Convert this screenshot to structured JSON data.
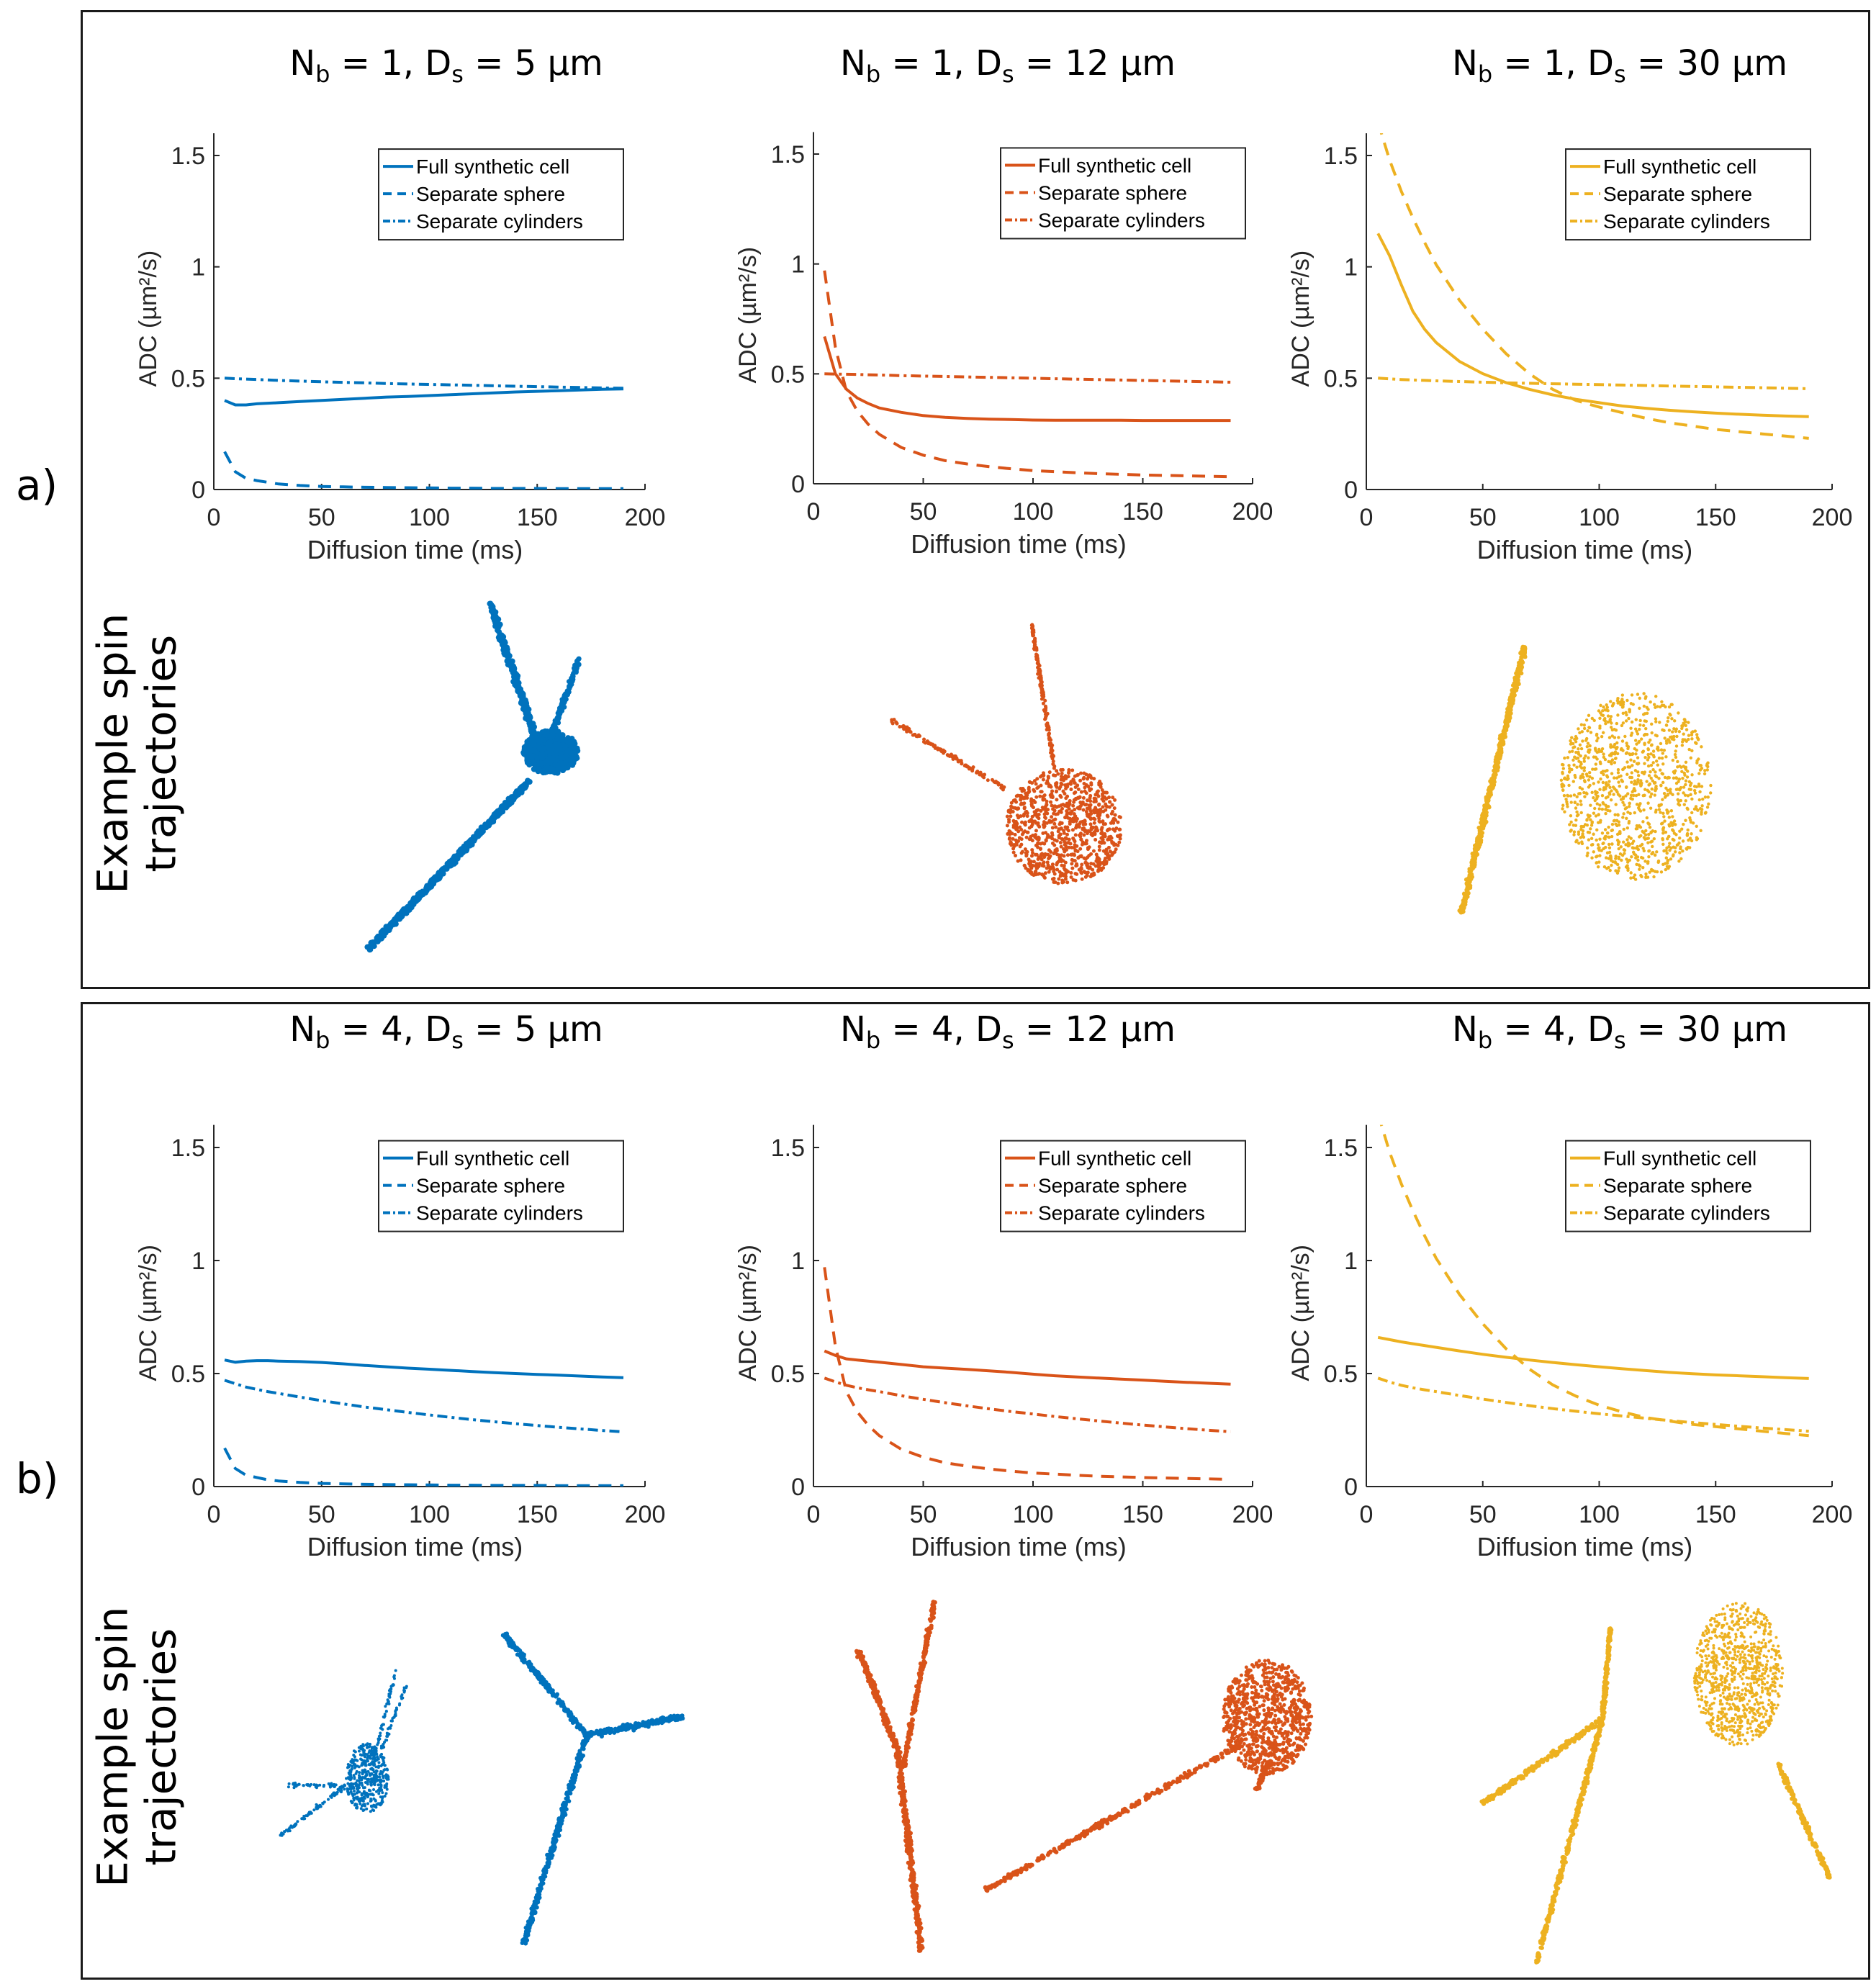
{
  "figure": {
    "panels": [
      {
        "label": "a)",
        "side_label_line1": "Example spin",
        "side_label_line2": "trajectories"
      },
      {
        "label": "b)",
        "side_label_line1": "Example spin",
        "side_label_line2": "trajectories"
      }
    ],
    "colors": {
      "blue": "#0072BD",
      "orange": "#D95319",
      "yellow": "#EDB120",
      "axis": "#262626"
    }
  },
  "chart_data": [
    {
      "type": "line",
      "panel": "a",
      "title": {
        "n_b": "1",
        "d_s": "5"
      },
      "title_text": "N_b = 1, D_s = 5 µm",
      "xlabel": "Diffusion time (ms)",
      "ylabel": "ADC (µm²/s)",
      "xlim": [
        0,
        200
      ],
      "ylim": [
        0,
        1.6
      ],
      "xticks": [
        0,
        50,
        100,
        150,
        200
      ],
      "yticks": [
        0,
        0.5,
        1,
        1.5
      ],
      "color": "#0072BD",
      "legend": "top-right",
      "x": [
        5,
        10,
        15,
        20,
        30,
        40,
        50,
        60,
        70,
        80,
        90,
        100,
        110,
        120,
        130,
        140,
        150,
        160,
        170,
        180,
        190
      ],
      "series": [
        {
          "name": "Full synthetic cell",
          "style": "solid",
          "values": [
            0.4,
            0.38,
            0.38,
            0.385,
            0.39,
            0.395,
            0.4,
            0.405,
            0.41,
            0.415,
            0.418,
            0.422,
            0.426,
            0.43,
            0.434,
            0.438,
            0.441,
            0.444,
            0.447,
            0.45,
            0.452
          ]
        },
        {
          "name": "Separate sphere",
          "style": "dashed",
          "values": [
            0.17,
            0.08,
            0.05,
            0.04,
            0.025,
            0.018,
            0.014,
            0.012,
            0.01,
            0.009,
            0.008,
            0.007,
            0.006,
            0.006,
            0.005,
            0.005,
            0.005,
            0.004,
            0.004,
            0.004,
            0.004
          ]
        },
        {
          "name": "Separate cylinders",
          "style": "dashdot",
          "values": [
            0.5,
            0.498,
            0.496,
            0.494,
            0.49,
            0.487,
            0.484,
            0.481,
            0.479,
            0.476,
            0.474,
            0.472,
            0.47,
            0.468,
            0.466,
            0.464,
            0.462,
            0.46,
            0.458,
            0.456,
            0.455
          ]
        }
      ]
    },
    {
      "type": "line",
      "panel": "a",
      "title": {
        "n_b": "1",
        "d_s": "12"
      },
      "title_text": "N_b = 1, D_s = 12 µm",
      "xlabel": "Diffusion time (ms)",
      "ylabel": "ADC (µm²/s)",
      "xlim": [
        0,
        200
      ],
      "ylim": [
        0,
        1.6
      ],
      "xticks": [
        0,
        50,
        100,
        150,
        200
      ],
      "yticks": [
        0,
        0.5,
        1,
        1.5
      ],
      "color": "#D95319",
      "legend": "top-right",
      "x": [
        5,
        10,
        15,
        20,
        25,
        30,
        40,
        50,
        60,
        70,
        80,
        90,
        100,
        110,
        120,
        130,
        140,
        150,
        160,
        170,
        180,
        190
      ],
      "series": [
        {
          "name": "Full synthetic cell",
          "style": "solid",
          "values": [
            0.67,
            0.5,
            0.43,
            0.39,
            0.365,
            0.345,
            0.325,
            0.31,
            0.302,
            0.297,
            0.294,
            0.292,
            0.29,
            0.289,
            0.289,
            0.289,
            0.289,
            0.288,
            0.288,
            0.288,
            0.288,
            0.288
          ]
        },
        {
          "name": "Separate sphere",
          "style": "dashed",
          "values": [
            0.97,
            0.62,
            0.42,
            0.33,
            0.27,
            0.225,
            0.165,
            0.13,
            0.105,
            0.09,
            0.078,
            0.068,
            0.06,
            0.055,
            0.05,
            0.046,
            0.043,
            0.04,
            0.038,
            0.036,
            0.034,
            0.032
          ]
        },
        {
          "name": "Separate cylinders",
          "style": "dashdot",
          "values": [
            0.5,
            0.499,
            0.498,
            0.497,
            0.496,
            0.495,
            0.492,
            0.49,
            0.488,
            0.486,
            0.484,
            0.482,
            0.48,
            0.478,
            0.476,
            0.474,
            0.472,
            0.47,
            0.468,
            0.466,
            0.464,
            0.462
          ]
        }
      ]
    },
    {
      "type": "line",
      "panel": "a",
      "title": {
        "n_b": "1",
        "d_s": "30"
      },
      "title_text": "N_b = 1, D_s = 30 µm",
      "xlabel": "Diffusion time (ms)",
      "ylabel": "ADC (µm²/s)",
      "xlim": [
        0,
        200
      ],
      "ylim": [
        0,
        1.6
      ],
      "xticks": [
        0,
        50,
        100,
        150,
        200
      ],
      "yticks": [
        0,
        0.5,
        1,
        1.5
      ],
      "color": "#EDB120",
      "legend": "top-right",
      "x": [
        5,
        10,
        15,
        20,
        25,
        30,
        40,
        50,
        60,
        70,
        80,
        90,
        100,
        110,
        120,
        130,
        140,
        150,
        160,
        170,
        180,
        190
      ],
      "series": [
        {
          "name": "Full synthetic cell",
          "style": "solid",
          "values": [
            1.15,
            1.05,
            0.92,
            0.8,
            0.72,
            0.66,
            0.575,
            0.52,
            0.48,
            0.45,
            0.425,
            0.405,
            0.39,
            0.375,
            0.365,
            0.356,
            0.349,
            0.343,
            0.338,
            0.334,
            0.33,
            0.327
          ]
        },
        {
          "name": "Separate sphere",
          "style": "dashed",
          "values": [
            1.65,
            1.48,
            1.34,
            1.22,
            1.11,
            1.01,
            0.85,
            0.72,
            0.61,
            0.52,
            0.45,
            0.4,
            0.37,
            0.345,
            0.32,
            0.3,
            0.285,
            0.27,
            0.26,
            0.25,
            0.24,
            0.23
          ]
        },
        {
          "name": "Separate cylinders",
          "style": "dashdot",
          "values": [
            0.5,
            0.497,
            0.494,
            0.492,
            0.49,
            0.488,
            0.485,
            0.482,
            0.479,
            0.477,
            0.475,
            0.473,
            0.471,
            0.469,
            0.467,
            0.465,
            0.463,
            0.461,
            0.459,
            0.457,
            0.455,
            0.453
          ]
        }
      ]
    },
    {
      "type": "line",
      "panel": "b",
      "title": {
        "n_b": "4",
        "d_s": "5"
      },
      "title_text": "N_b = 4, D_s = 5 µm",
      "xlabel": "Diffusion time (ms)",
      "ylabel": "ADC (µm²/s)",
      "xlim": [
        0,
        200
      ],
      "ylim": [
        0,
        1.6
      ],
      "xticks": [
        0,
        50,
        100,
        150,
        200
      ],
      "yticks": [
        0,
        0.5,
        1,
        1.5
      ],
      "color": "#0072BD",
      "legend": "top-right",
      "x": [
        5,
        10,
        15,
        20,
        25,
        30,
        40,
        50,
        60,
        70,
        80,
        90,
        100,
        110,
        120,
        130,
        140,
        150,
        160,
        170,
        180,
        190
      ],
      "series": [
        {
          "name": "Full synthetic cell",
          "style": "solid",
          "values": [
            0.56,
            0.55,
            0.555,
            0.557,
            0.557,
            0.555,
            0.553,
            0.549,
            0.543,
            0.536,
            0.53,
            0.524,
            0.519,
            0.514,
            0.509,
            0.504,
            0.5,
            0.496,
            0.493,
            0.489,
            0.485,
            0.482
          ]
        },
        {
          "name": "Separate sphere",
          "style": "dashed",
          "values": [
            0.17,
            0.08,
            0.05,
            0.04,
            0.03,
            0.025,
            0.018,
            0.014,
            0.012,
            0.01,
            0.009,
            0.008,
            0.007,
            0.006,
            0.006,
            0.005,
            0.005,
            0.005,
            0.004,
            0.004,
            0.004,
            0.004
          ]
        },
        {
          "name": "Separate cylinders",
          "style": "dashdot",
          "values": [
            0.47,
            0.455,
            0.44,
            0.43,
            0.42,
            0.412,
            0.396,
            0.38,
            0.366,
            0.352,
            0.34,
            0.328,
            0.317,
            0.306,
            0.296,
            0.287,
            0.278,
            0.27,
            0.262,
            0.255,
            0.248,
            0.242
          ]
        }
      ]
    },
    {
      "type": "line",
      "panel": "b",
      "title": {
        "n_b": "4",
        "d_s": "12"
      },
      "title_text": "N_b = 4, D_s = 12 µm",
      "xlabel": "Diffusion time (ms)",
      "ylabel": "ADC (µm²/s)",
      "xlim": [
        0,
        200
      ],
      "ylim": [
        0,
        1.6
      ],
      "xticks": [
        0,
        50,
        100,
        150,
        200
      ],
      "yticks": [
        0,
        0.5,
        1,
        1.5
      ],
      "color": "#D95319",
      "legend": "top-right",
      "x": [
        5,
        10,
        15,
        20,
        25,
        30,
        40,
        50,
        60,
        70,
        80,
        90,
        100,
        110,
        120,
        130,
        140,
        150,
        160,
        170,
        180,
        190
      ],
      "series": [
        {
          "name": "Full synthetic cell",
          "style": "solid",
          "values": [
            0.6,
            0.58,
            0.565,
            0.56,
            0.555,
            0.55,
            0.54,
            0.53,
            0.524,
            0.518,
            0.512,
            0.505,
            0.497,
            0.49,
            0.485,
            0.48,
            0.475,
            0.471,
            0.466,
            0.461,
            0.457,
            0.453
          ]
        },
        {
          "name": "Separate sphere",
          "style": "dashed",
          "values": [
            0.97,
            0.62,
            0.42,
            0.33,
            0.27,
            0.225,
            0.165,
            0.13,
            0.105,
            0.09,
            0.078,
            0.068,
            0.06,
            0.055,
            0.05,
            0.046,
            0.043,
            0.04,
            0.038,
            0.036,
            0.034,
            0.032
          ]
        },
        {
          "name": "Separate cylinders",
          "style": "dashdot",
          "values": [
            0.48,
            0.463,
            0.448,
            0.437,
            0.428,
            0.42,
            0.402,
            0.386,
            0.371,
            0.357,
            0.344,
            0.332,
            0.321,
            0.31,
            0.3,
            0.29,
            0.281,
            0.272,
            0.264,
            0.256,
            0.249,
            0.243
          ]
        }
      ]
    },
    {
      "type": "line",
      "panel": "b",
      "title": {
        "n_b": "4",
        "d_s": "30"
      },
      "title_text": "N_b = 4, D_s = 30 µm",
      "xlabel": "Diffusion time (ms)",
      "ylabel": "ADC (µm²/s)",
      "xlim": [
        0,
        200
      ],
      "ylim": [
        0,
        1.6
      ],
      "xticks": [
        0,
        50,
        100,
        150,
        200
      ],
      "yticks": [
        0,
        0.5,
        1,
        1.5
      ],
      "color": "#EDB120",
      "legend": "top-right",
      "x": [
        5,
        10,
        15,
        20,
        25,
        30,
        40,
        50,
        60,
        70,
        80,
        90,
        100,
        110,
        120,
        130,
        140,
        150,
        160,
        170,
        180,
        190
      ],
      "series": [
        {
          "name": "Full synthetic cell",
          "style": "solid",
          "values": [
            0.66,
            0.65,
            0.64,
            0.632,
            0.624,
            0.616,
            0.6,
            0.585,
            0.572,
            0.56,
            0.549,
            0.539,
            0.53,
            0.521,
            0.513,
            0.505,
            0.499,
            0.494,
            0.49,
            0.486,
            0.482,
            0.478
          ]
        },
        {
          "name": "Separate sphere",
          "style": "dashed",
          "values": [
            1.65,
            1.48,
            1.34,
            1.22,
            1.11,
            1.01,
            0.85,
            0.72,
            0.61,
            0.52,
            0.45,
            0.4,
            0.36,
            0.33,
            0.305,
            0.29,
            0.275,
            0.265,
            0.255,
            0.245,
            0.235,
            0.225
          ]
        },
        {
          "name": "Separate cylinders",
          "style": "dashdot",
          "values": [
            0.48,
            0.462,
            0.448,
            0.437,
            0.428,
            0.42,
            0.403,
            0.387,
            0.372,
            0.358,
            0.345,
            0.333,
            0.322,
            0.312,
            0.302,
            0.292,
            0.283,
            0.275,
            0.267,
            0.259,
            0.252,
            0.245
          ]
        }
      ]
    }
  ]
}
